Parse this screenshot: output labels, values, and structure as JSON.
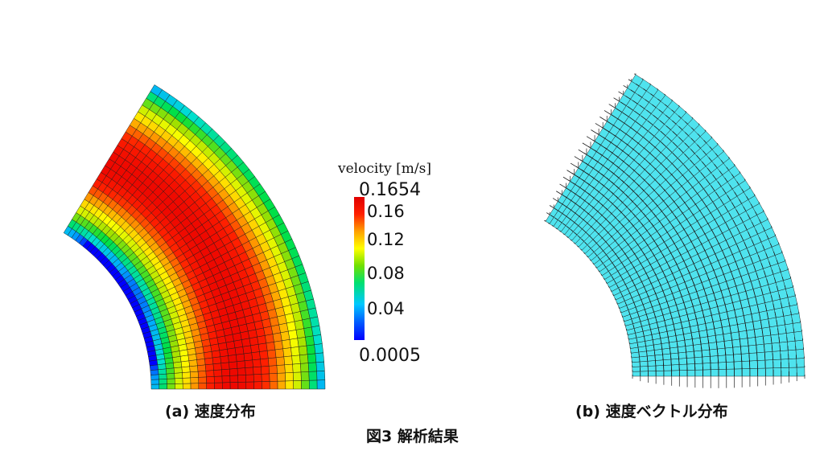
{
  "figure": {
    "panel_a_caption": "(a) 速度分布",
    "panel_b_caption": "(b) 速度ベクトル分布",
    "figure_caption": "図3  解析結果"
  },
  "legend": {
    "title": "velocity [m/s]",
    "max_label": "0.1654",
    "min_label": "0.0005",
    "ticks": [
      "0.16",
      "0.12",
      "0.08",
      "0.04"
    ],
    "max": 0.1654,
    "min": 0.0005,
    "tick_values": [
      0.16,
      0.12,
      0.08,
      0.04
    ],
    "colors": [
      "#0000ff",
      "#00aaff",
      "#00e0d0",
      "#00e040",
      "#a0e000",
      "#ffff00",
      "#ffa000",
      "#ff2000",
      "#e80000"
    ]
  },
  "colors": {
    "mesh_line": "#1a1a1a",
    "vector_field_fill": "#4fe3ee",
    "arrow": "#555555"
  }
}
